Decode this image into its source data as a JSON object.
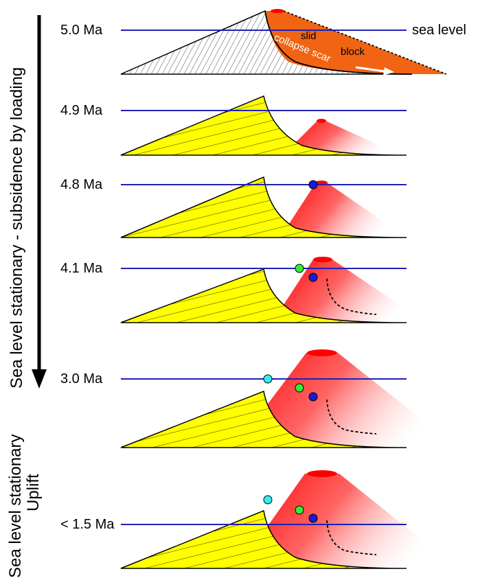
{
  "side_labels": {
    "top": "Sea level stationary - subsidence by loading",
    "bottom_line1": "Sea level stationary",
    "bottom_line2": "Uplift"
  },
  "panels": [
    {
      "age": "5.0 Ma"
    },
    {
      "age": "4.9 Ma"
    },
    {
      "age": "4.8 Ma"
    },
    {
      "age": "4.1 Ma"
    },
    {
      "age": "3.0 Ma"
    },
    {
      "age": "< 1.5 Ma"
    }
  ],
  "annotations": {
    "sea_level": "sea level",
    "slid": "slid",
    "block": "block",
    "collapse_scar": "collapse scar"
  },
  "colors": {
    "sea_level_line": "#1f1fb4",
    "old_volcano_fill": "#ffff00",
    "slid_block_fill": "#f06414",
    "new_volcano_fill": "#ff0000",
    "blue_marker": "#1a1ad4",
    "green_marker": "#33ee33",
    "cyan_marker": "#33eeee"
  }
}
